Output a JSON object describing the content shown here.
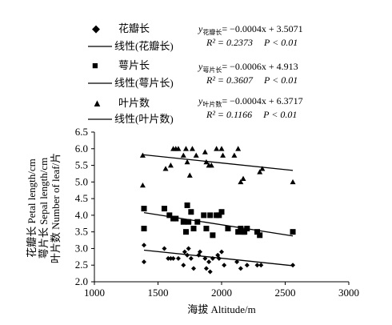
{
  "chart_data": {
    "type": "scatter",
    "xlabel": "海拔 Altitude/m",
    "ylabel_lines": [
      "花瓣长 Petal length/cm",
      "萼片长 Sepal length/cm",
      "叶片数 Number of leaf/片"
    ],
    "xlim": [
      1000,
      3000
    ],
    "ylim": [
      2.0,
      6.5
    ],
    "xticks": [
      "1000",
      "1500",
      "2000",
      "2500",
      "3000"
    ],
    "yticks": [
      "2.0",
      "2.5",
      "3.0",
      "3.5",
      "4.0",
      "4.5",
      "5.0",
      "5.5",
      "6.0",
      "6.5"
    ],
    "legend_placement": "top",
    "legend": [
      {
        "marker_symbol": "◆",
        "label": "花瓣长",
        "line_label": "线性(花瓣长)"
      },
      {
        "marker_symbol": "■",
        "label": "萼片长",
        "line_label": "线性(萼片长)"
      },
      {
        "marker_symbol": "▲",
        "label": "叶片数",
        "line_label": "线性(叶片数)"
      }
    ],
    "equations": [
      {
        "y_sub": "花瓣长",
        "fit": "= −0.0004x + 3.5071",
        "r2": "R² = 0.2373",
        "p": "P < 0.01"
      },
      {
        "y_sub": "萼片长",
        "fit": "= −0.0006x + 4.913",
        "r2": "R² = 0.3607",
        "p": "P < 0.01"
      },
      {
        "y_sub": "叶片数",
        "fit": "= −0.0004x + 6.3717",
        "r2": "R² = 0.1166",
        "p": "P < 0.01"
      }
    ],
    "series": [
      {
        "name": "花瓣长",
        "marker": "diamond",
        "trend": {
          "slope": -0.0004,
          "intercept": 3.5071
        },
        "points": [
          [
            1390,
            3.1
          ],
          [
            1390,
            2.6
          ],
          [
            1550,
            3.0
          ],
          [
            1580,
            2.7
          ],
          [
            1600,
            2.7
          ],
          [
            1620,
            2.7
          ],
          [
            1660,
            2.7
          ],
          [
            1700,
            2.5
          ],
          [
            1710,
            2.9
          ],
          [
            1730,
            2.8
          ],
          [
            1740,
            3.0
          ],
          [
            1760,
            2.7
          ],
          [
            1780,
            2.4
          ],
          [
            1820,
            2.8
          ],
          [
            1830,
            2.9
          ],
          [
            1870,
            2.7
          ],
          [
            1880,
            2.4
          ],
          [
            1900,
            2.6
          ],
          [
            1910,
            2.3
          ],
          [
            1930,
            2.7
          ],
          [
            1970,
            2.8
          ],
          [
            1980,
            2.7
          ],
          [
            2000,
            2.9
          ],
          [
            2020,
            2.5
          ],
          [
            2120,
            2.6
          ],
          [
            2150,
            2.4
          ],
          [
            2200,
            2.5
          ],
          [
            2280,
            2.5
          ],
          [
            2310,
            2.5
          ],
          [
            2560,
            2.5
          ]
        ]
      },
      {
        "name": "萼片长",
        "marker": "square",
        "trend": {
          "slope": -0.0006,
          "intercept": 4.913
        },
        "points": [
          [
            1390,
            4.2
          ],
          [
            1390,
            3.6
          ],
          [
            1550,
            4.2
          ],
          [
            1590,
            4.0
          ],
          [
            1620,
            3.9
          ],
          [
            1640,
            3.9
          ],
          [
            1700,
            3.8
          ],
          [
            1720,
            3.5
          ],
          [
            1730,
            4.3
          ],
          [
            1740,
            3.8
          ],
          [
            1760,
            4.1
          ],
          [
            1780,
            3.6
          ],
          [
            1810,
            3.8
          ],
          [
            1860,
            4.0
          ],
          [
            1880,
            3.6
          ],
          [
            1910,
            4.0
          ],
          [
            1930,
            3.4
          ],
          [
            1960,
            4.0
          ],
          [
            1980,
            4.0
          ],
          [
            2000,
            4.1
          ],
          [
            2050,
            3.6
          ],
          [
            2130,
            3.5
          ],
          [
            2150,
            3.6
          ],
          [
            2170,
            3.5
          ],
          [
            2180,
            3.5
          ],
          [
            2200,
            3.6
          ],
          [
            2280,
            3.5
          ],
          [
            2300,
            3.4
          ],
          [
            2560,
            3.5
          ]
        ]
      },
      {
        "name": "叶片数",
        "marker": "triangle",
        "trend": {
          "slope": -0.0004,
          "intercept": 6.3717
        },
        "points": [
          [
            1380,
            5.8
          ],
          [
            1380,
            4.9
          ],
          [
            1560,
            5.4
          ],
          [
            1600,
            5.5
          ],
          [
            1620,
            6.0
          ],
          [
            1640,
            6.0
          ],
          [
            1660,
            6.0
          ],
          [
            1700,
            5.8
          ],
          [
            1720,
            6.0
          ],
          [
            1730,
            5.6
          ],
          [
            1750,
            5.2
          ],
          [
            1770,
            6.0
          ],
          [
            1800,
            5.8
          ],
          [
            1870,
            5.9
          ],
          [
            1880,
            5.6
          ],
          [
            1900,
            5.5
          ],
          [
            1920,
            5.5
          ],
          [
            1960,
            6.0
          ],
          [
            2000,
            6.0
          ],
          [
            2010,
            5.8
          ],
          [
            2100,
            5.8
          ],
          [
            2130,
            6.0
          ],
          [
            2150,
            5.0
          ],
          [
            2170,
            5.1
          ],
          [
            2300,
            5.3
          ],
          [
            2320,
            5.4
          ],
          [
            2560,
            5.0
          ]
        ]
      }
    ]
  }
}
